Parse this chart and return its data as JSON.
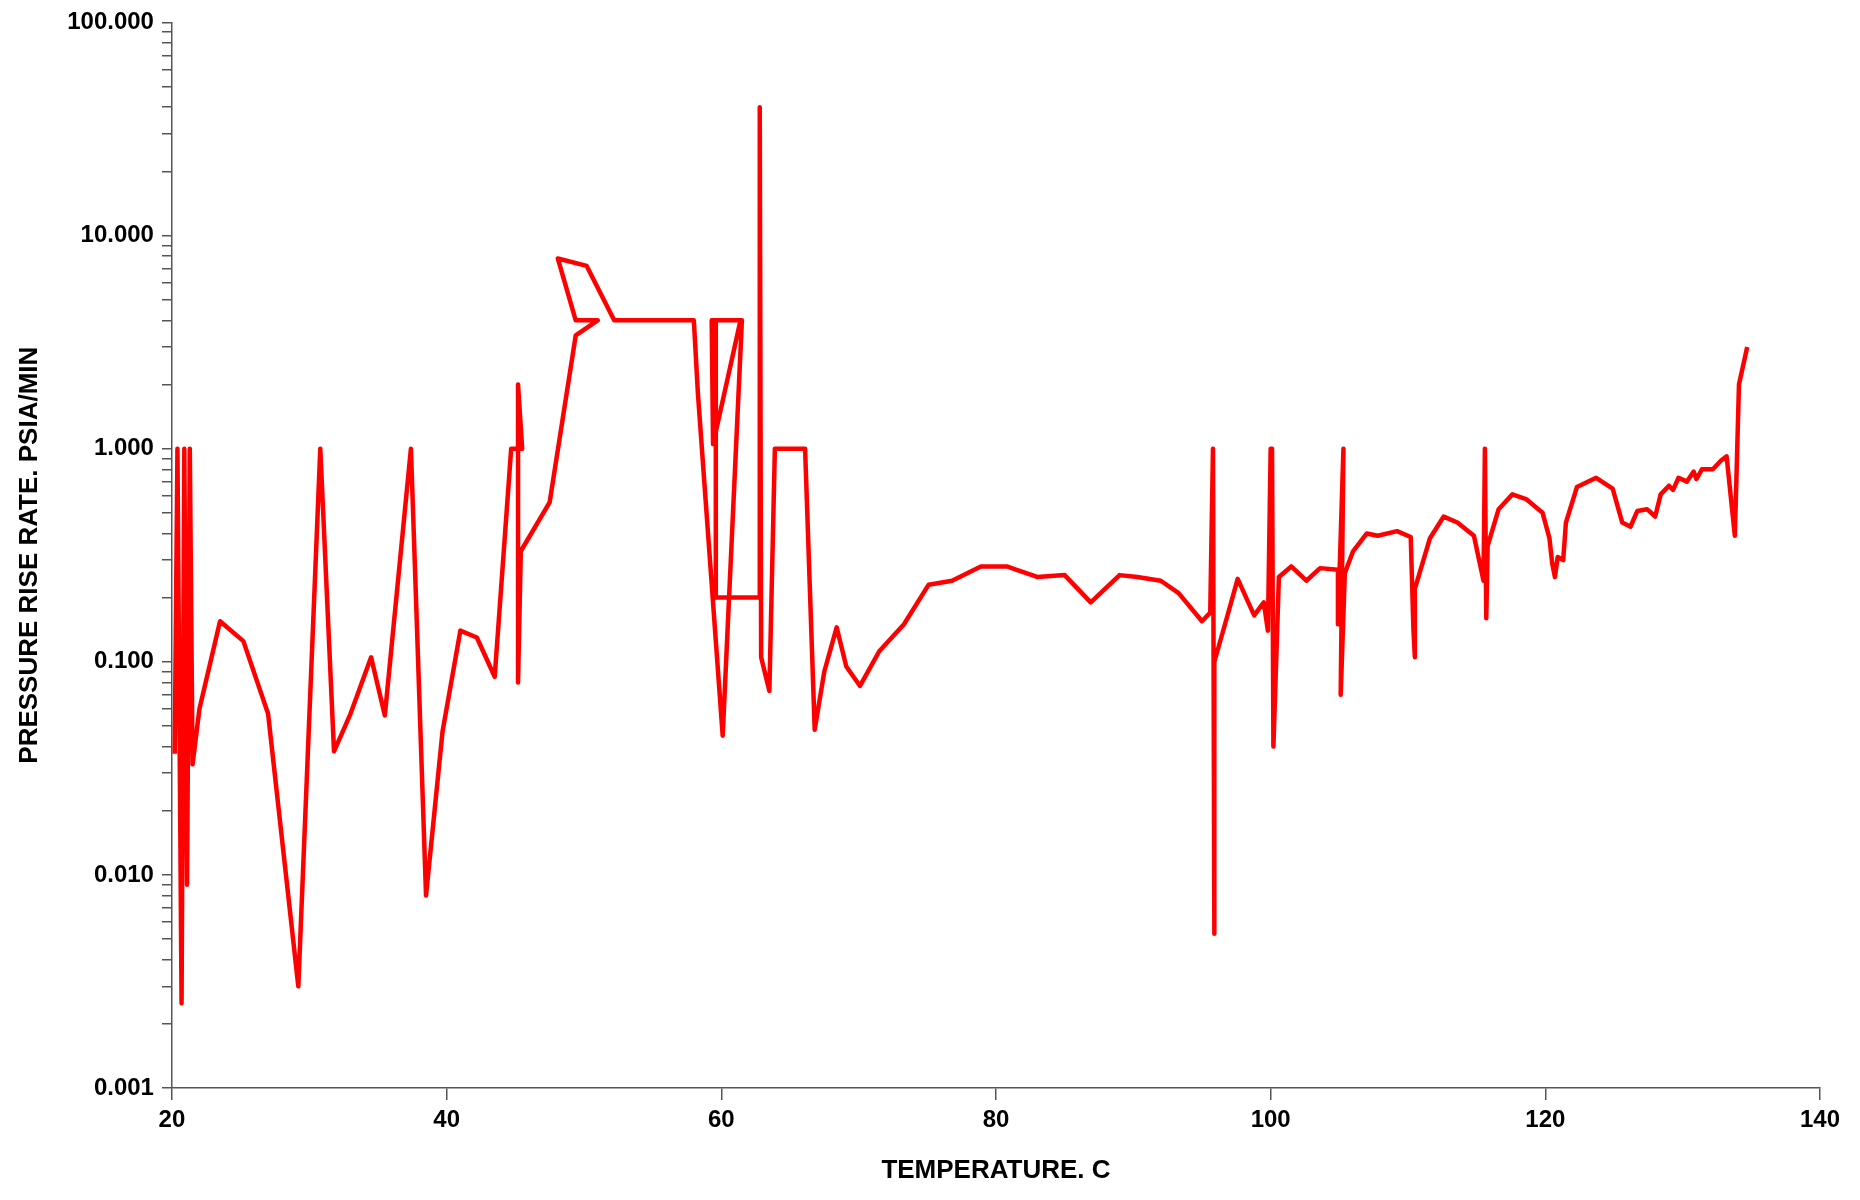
{
  "chart_data": {
    "type": "line",
    "xlabel": "TEMPERATURE. C",
    "ylabel": "PRESSURE RISE RATE. PSIA/MIN",
    "log": "y",
    "grid": false,
    "legend": false,
    "marker": "none",
    "line_style": "solid",
    "xlim": [
      20,
      140
    ],
    "xticks": [
      20,
      40,
      60,
      80,
      100,
      120,
      140
    ],
    "ylim": [
      0.001,
      100
    ],
    "yticks": [
      {
        "value": 0.001,
        "label": "0.001"
      },
      {
        "value": 0.002,
        "label": null
      },
      {
        "value": 0.003,
        "label": null
      },
      {
        "value": 0.004,
        "label": null
      },
      {
        "value": 0.005,
        "label": null
      },
      {
        "value": 0.006,
        "label": null
      },
      {
        "value": 0.007,
        "label": null
      },
      {
        "value": 0.008,
        "label": null
      },
      {
        "value": 0.009,
        "label": null
      },
      {
        "value": 0.01,
        "label": "0.010"
      },
      {
        "value": 0.02,
        "label": null
      },
      {
        "value": 0.03,
        "label": null
      },
      {
        "value": 0.04,
        "label": null
      },
      {
        "value": 0.05,
        "label": null
      },
      {
        "value": 0.06,
        "label": null
      },
      {
        "value": 0.07,
        "label": null
      },
      {
        "value": 0.08,
        "label": null
      },
      {
        "value": 0.09,
        "label": null
      },
      {
        "value": 0.1,
        "label": "0.100"
      },
      {
        "value": 0.2,
        "label": null
      },
      {
        "value": 0.3,
        "label": null
      },
      {
        "value": 0.4,
        "label": null
      },
      {
        "value": 0.5,
        "label": null
      },
      {
        "value": 0.6,
        "label": null
      },
      {
        "value": 0.7,
        "label": null
      },
      {
        "value": 0.8,
        "label": null
      },
      {
        "value": 0.9,
        "label": null
      },
      {
        "value": 1,
        "label": "1.000"
      },
      {
        "value": 2,
        "label": null
      },
      {
        "value": 3,
        "label": null
      },
      {
        "value": 4,
        "label": null
      },
      {
        "value": 5,
        "label": null
      },
      {
        "value": 6,
        "label": null
      },
      {
        "value": 7,
        "label": null
      },
      {
        "value": 8,
        "label": null
      },
      {
        "value": 9,
        "label": null
      },
      {
        "value": 10,
        "label": "10.000"
      },
      {
        "value": 20,
        "label": null
      },
      {
        "value": 30,
        "label": null
      },
      {
        "value": 40,
        "label": null
      },
      {
        "value": 50,
        "label": null
      },
      {
        "value": 60,
        "label": null
      },
      {
        "value": 70,
        "label": null
      },
      {
        "value": 80,
        "label": null
      },
      {
        "value": 90,
        "label": null
      },
      {
        "value": 100,
        "label": "100.000"
      }
    ],
    "series": [
      {
        "color": "#ff0000",
        "x": [
          20.2,
          20.4,
          20.7,
          20.9,
          21.1,
          21.3,
          21.5,
          22.0,
          23.5,
          25.2,
          27.0,
          29.2,
          30.8,
          31.8,
          33.0,
          34.5,
          35.5,
          37.4,
          38.5,
          39.7,
          41.0,
          42.2,
          43.5,
          44.7,
          45.5,
          45.2,
          45.2,
          45.4,
          47.5,
          49.4,
          51.0,
          49.4,
          48.1,
          50.2,
          52.2,
          57.3,
          58.0,
          58.3,
          60.1,
          61.5,
          59.3,
          59.4,
          61.4,
          59.4,
          59.6,
          59.6,
          62.8,
          62.8,
          62.9,
          63.5,
          63.9,
          66.1,
          66.8,
          67.5,
          68.4,
          69.1,
          70.1,
          71.5,
          73.3,
          75.1,
          76.8,
          78.9,
          80.8,
          83.0,
          85.0,
          86.9,
          89.0,
          90.3,
          92.0,
          93.3,
          95.0,
          95.6,
          95.8,
          95.9,
          95.9,
          96.8,
          97.6,
          98.8,
          99.5,
          99.8,
          100.0,
          100.1,
          100.2,
          100.6,
          101.5,
          102.6,
          103.6,
          104.9,
          104.9,
          105.3,
          105.1,
          105.4,
          106.0,
          107.0,
          107.8,
          109.2,
          110.2,
          110.4,
          110.5,
          110.5,
          111.6,
          112.6,
          113.6,
          114.8,
          115.5,
          115.6,
          115.7,
          115.8,
          116.6,
          117.6,
          118.6,
          119.8,
          120.3,
          120.5,
          120.7,
          120.9,
          121.3,
          121.5,
          122.3,
          123.7,
          124.9,
          125.6,
          126.2,
          126.7,
          127.4,
          127.7,
          128.0,
          128.4,
          129.0,
          129.3,
          129.7,
          130.3,
          130.8,
          131.0,
          131.4,
          132.2,
          132.8,
          133.2,
          133.8,
          134.1,
          134.7
        ],
        "values": [
          0.037,
          1.0,
          0.0025,
          1.0,
          0.009,
          1.0,
          0.033,
          0.06,
          0.155,
          0.125,
          0.057,
          0.003,
          1.0,
          0.038,
          0.057,
          0.105,
          0.056,
          1.0,
          0.008,
          0.047,
          0.14,
          0.13,
          0.085,
          1.0,
          1.0,
          2.0,
          0.08,
          0.33,
          0.56,
          3.4,
          4.0,
          4.0,
          7.8,
          7.2,
          4.0,
          4.0,
          4.0,
          1.8,
          0.045,
          4.0,
          4.0,
          1.05,
          4.0,
          4.0,
          4.0,
          0.2,
          0.2,
          40,
          0.105,
          0.073,
          1.0,
          1.0,
          0.048,
          0.09,
          0.145,
          0.095,
          0.077,
          0.112,
          0.15,
          0.23,
          0.24,
          0.28,
          0.28,
          0.25,
          0.255,
          0.19,
          0.255,
          0.25,
          0.24,
          0.21,
          0.155,
          0.17,
          1.0,
          0.0053,
          0.1,
          0.16,
          0.245,
          0.165,
          0.19,
          0.14,
          1.0,
          1.0,
          0.04,
          0.25,
          0.28,
          0.24,
          0.275,
          0.27,
          0.15,
          1.0,
          0.07,
          0.26,
          0.33,
          0.4,
          0.39,
          0.41,
          0.385,
          0.14,
          0.105,
          0.22,
          0.38,
          0.48,
          0.45,
          0.39,
          0.24,
          1.0,
          0.16,
          0.35,
          0.52,
          0.61,
          0.58,
          0.5,
          0.38,
          0.29,
          0.25,
          0.31,
          0.3,
          0.45,
          0.66,
          0.73,
          0.65,
          0.45,
          0.43,
          0.51,
          0.52,
          0.5,
          0.48,
          0.61,
          0.67,
          0.64,
          0.73,
          0.7,
          0.78,
          0.72,
          0.8,
          0.8,
          0.88,
          0.92,
          0.39,
          2.0,
          3.0
        ]
      }
    ]
  }
}
